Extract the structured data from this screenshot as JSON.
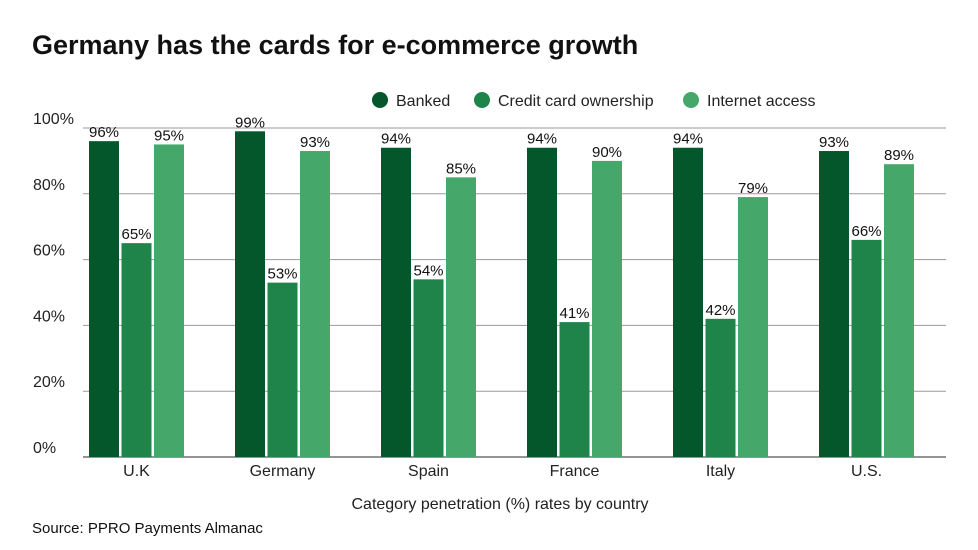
{
  "chart_data": {
    "type": "bar",
    "title": "Germany has the cards for e-commerce growth",
    "xlabel": "Category penetration (%) rates by country",
    "ylabel": "",
    "ylim": [
      0,
      100
    ],
    "yticks": [
      0,
      20,
      40,
      60,
      80,
      100
    ],
    "ytick_labels": [
      "0%",
      "20%",
      "40%",
      "60%",
      "80%",
      "100%"
    ],
    "grid": true,
    "legend_position": "top-right",
    "categories": [
      "U.K",
      "Germany",
      "Spain",
      "France",
      "Italy",
      "U.S."
    ],
    "series": [
      {
        "name": "Banked",
        "color": "#03572a",
        "values": [
          96,
          99,
          94,
          94,
          94,
          93
        ]
      },
      {
        "name": "Credit card ownership",
        "color": "#1f844a",
        "values": [
          65,
          53,
          54,
          41,
          42,
          66
        ]
      },
      {
        "name": "Internet access",
        "color": "#45a86a",
        "values": [
          95,
          93,
          85,
          90,
          79,
          89
        ]
      }
    ],
    "value_suffix": "%"
  },
  "source": "Source: PPRO Payments Almanac"
}
